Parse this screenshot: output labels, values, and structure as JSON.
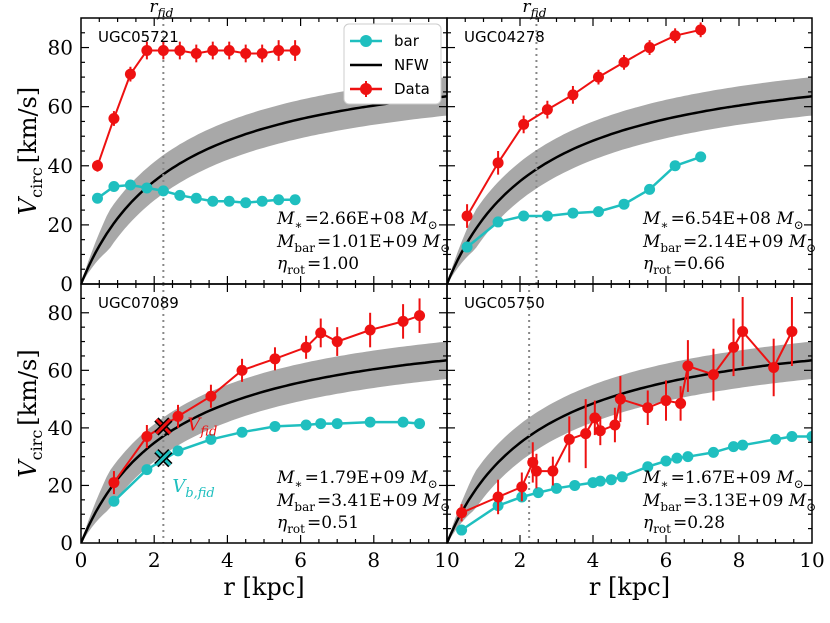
{
  "chart_data": {
    "type": "line",
    "xlabel": "r [kpc]",
    "ylabel_main": "V",
    "ylabel_sub": "circ",
    "ylabel_units": "[km/s]",
    "xlim": [
      0,
      10
    ],
    "ylim": [
      0,
      90
    ],
    "xticks": [
      "0",
      "2",
      "4",
      "6",
      "8",
      "10"
    ],
    "yticks": [
      "0",
      "20",
      "40",
      "60",
      "80"
    ],
    "rfid_main": "r",
    "rfid_sub": "fid",
    "legend": {
      "bar": "bar",
      "nfw": "NFW",
      "data": "Data"
    },
    "colors": {
      "bar": "#1fbfbf",
      "data": "#ee1111",
      "nfw": "#000000",
      "band": "#a8a8a8",
      "rfid": "#888888"
    },
    "panels": [
      {
        "name": "UGC05721",
        "rfid": 2.25,
        "mstar": "=2.66E+08",
        "mbar": "=1.01E+09",
        "eta": "=1.00",
        "nfw_vmax": 80,
        "nfw_rs": 2.6,
        "band_width": 6.5,
        "data_x": [
          0.45,
          0.9,
          1.35,
          1.8,
          2.25,
          2.7,
          3.15,
          3.6,
          4.05,
          4.5,
          4.95,
          5.4,
          5.85
        ],
        "data_y": [
          40,
          56,
          71,
          79,
          79,
          79,
          78,
          79,
          79,
          78,
          78,
          79,
          79
        ],
        "data_err": [
          2,
          2.5,
          2.5,
          3,
          3,
          3,
          3,
          3,
          3,
          3,
          3,
          3.5,
          3.5
        ],
        "bar_x": [
          0.45,
          0.9,
          1.35,
          1.8,
          2.25,
          2.7,
          3.15,
          3.6,
          4.05,
          4.5,
          4.95,
          5.4,
          5.85
        ],
        "bar_y": [
          29,
          33,
          33.5,
          32.5,
          31.5,
          30,
          29,
          28,
          28,
          27.5,
          28,
          28.5,
          28.5
        ]
      },
      {
        "name": "UGC04278",
        "rfid": 2.45,
        "mstar": "=6.54E+08",
        "mbar": "=2.14E+09",
        "eta": "=0.66",
        "nfw_vmax": 80,
        "nfw_rs": 2.6,
        "band_width": 6.5,
        "data_x": [
          0.55,
          1.4,
          2.1,
          2.75,
          3.45,
          4.15,
          4.85,
          5.55,
          6.25,
          6.95
        ],
        "data_y": [
          23,
          41,
          54,
          59,
          64,
          70,
          75,
          80,
          84,
          86
        ],
        "data_err": [
          4,
          4,
          3,
          3,
          3,
          2.5,
          2.5,
          2.5,
          2.5,
          2.5
        ],
        "bar_x": [
          0.55,
          1.4,
          2.1,
          2.75,
          3.45,
          4.15,
          4.85,
          5.55,
          6.25,
          6.95
        ],
        "bar_y": [
          12.5,
          21,
          23,
          23,
          24,
          24.5,
          27,
          32,
          40,
          43
        ]
      },
      {
        "name": "UGC07089",
        "rfid": 2.25,
        "mstar": "=1.79E+09",
        "mbar": "=3.41E+09",
        "eta": "=0.51",
        "nfw_vmax": 80,
        "nfw_rs": 2.6,
        "band_width": 6.5,
        "vfid_label_main": "V",
        "vfid_label_sub": "fid",
        "vbfid_label_main": "V",
        "vbfid_label_sub": "b,fid",
        "vfid_value": 40.5,
        "vbfid_value": 29.5,
        "data_x": [
          0.9,
          1.8,
          2.65,
          3.55,
          4.4,
          5.3,
          6.15,
          6.55,
          7.0,
          7.9,
          8.8,
          9.25
        ],
        "data_y": [
          21,
          37,
          44,
          51,
          60,
          64,
          68,
          73,
          70,
          74,
          77,
          79
        ],
        "data_err": [
          4,
          4,
          4,
          4,
          4,
          4,
          4,
          5,
          5,
          6,
          6,
          6
        ],
        "bar_x": [
          0.9,
          1.8,
          2.65,
          3.55,
          4.4,
          5.3,
          6.15,
          6.55,
          7.0,
          7.9,
          8.8,
          9.25
        ],
        "bar_y": [
          14.5,
          25.5,
          32,
          36,
          38.5,
          40.5,
          41,
          41.5,
          41.5,
          42,
          42,
          41.5
        ]
      },
      {
        "name": "UGC05750",
        "rfid": 2.25,
        "mstar": "=1.67E+09",
        "mbar": "=3.13E+09",
        "eta": "=0.28",
        "nfw_vmax": 80,
        "nfw_rs": 2.6,
        "band_width": 6.5,
        "data_x": [
          0.4,
          1.4,
          2.05,
          2.35,
          2.45,
          2.9,
          3.35,
          3.8,
          4.05,
          4.2,
          4.6,
          4.75,
          5.5,
          6.0,
          6.4,
          6.6,
          7.3,
          7.85,
          8.1,
          8.95,
          9.45
        ],
        "data_y": [
          10.5,
          16,
          19.5,
          28,
          25,
          25,
          36,
          38,
          43.5,
          39,
          41,
          50,
          47,
          49.5,
          48.5,
          61.5,
          58.5,
          68,
          73.5,
          61,
          73.5
        ],
        "data_err": [
          3,
          6,
          5,
          7,
          6,
          5,
          8,
          12,
          6,
          5,
          6,
          8,
          6,
          7,
          6,
          9,
          9,
          10,
          12,
          10,
          12
        ],
        "bar_x": [
          0.4,
          1.4,
          2.05,
          2.5,
          3.0,
          3.5,
          4.0,
          4.2,
          4.5,
          4.8,
          5.5,
          6.0,
          6.3,
          6.6,
          7.3,
          7.85,
          8.1,
          9.0,
          9.45,
          10.0
        ],
        "bar_y": [
          4.5,
          13,
          16,
          17.5,
          19,
          20,
          21,
          21.5,
          22,
          23,
          26.5,
          28.5,
          29.5,
          30,
          31.5,
          33.5,
          34,
          36,
          37,
          37
        ]
      }
    ]
  }
}
